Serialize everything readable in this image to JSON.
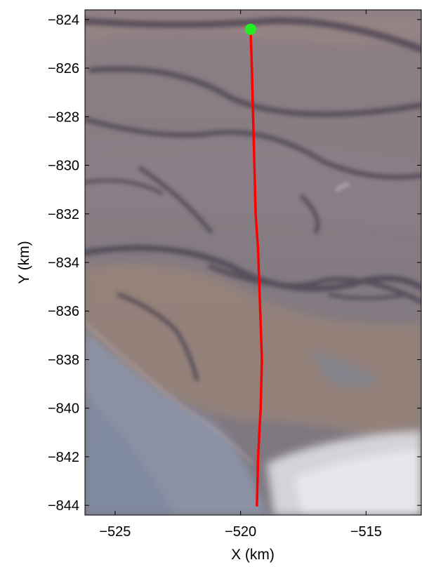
{
  "chart_data": {
    "type": "map-track",
    "xlabel": "X (km)",
    "ylabel": "Y (km)",
    "xlim": [
      -526.2,
      -512.8
    ],
    "ylim": [
      -844.4,
      -823.6
    ],
    "x_ticks": [
      {
        "value": -525,
        "label": "−525"
      },
      {
        "value": -520,
        "label": "−520"
      },
      {
        "value": -515,
        "label": "−515"
      }
    ],
    "y_ticks": [
      {
        "value": -824,
        "label": "−824"
      },
      {
        "value": -826,
        "label": "−826"
      },
      {
        "value": -828,
        "label": "−828"
      },
      {
        "value": -830,
        "label": "−830"
      },
      {
        "value": -832,
        "label": "−832"
      },
      {
        "value": -834,
        "label": "−834"
      },
      {
        "value": -836,
        "label": "−836"
      },
      {
        "value": -838,
        "label": "−838"
      },
      {
        "value": -840,
        "label": "−840"
      },
      {
        "value": -842,
        "label": "−842"
      },
      {
        "value": -844,
        "label": "−844"
      }
    ],
    "track": {
      "color": "#ff0000",
      "points": [
        [
          -519.6,
          -824.4
        ],
        [
          -519.55,
          -826.0
        ],
        [
          -519.5,
          -828.0
        ],
        [
          -519.45,
          -830.0
        ],
        [
          -519.4,
          -832.0
        ],
        [
          -519.3,
          -833.5
        ],
        [
          -519.25,
          -835.0
        ],
        [
          -519.2,
          -836.5
        ],
        [
          -519.15,
          -838.0
        ],
        [
          -519.2,
          -840.0
        ],
        [
          -519.3,
          -842.0
        ],
        [
          -519.35,
          -844.0
        ]
      ]
    },
    "start_marker": {
      "x": -519.6,
      "y": -824.4,
      "color": "#22ee22"
    },
    "background": "satellite imagery"
  }
}
